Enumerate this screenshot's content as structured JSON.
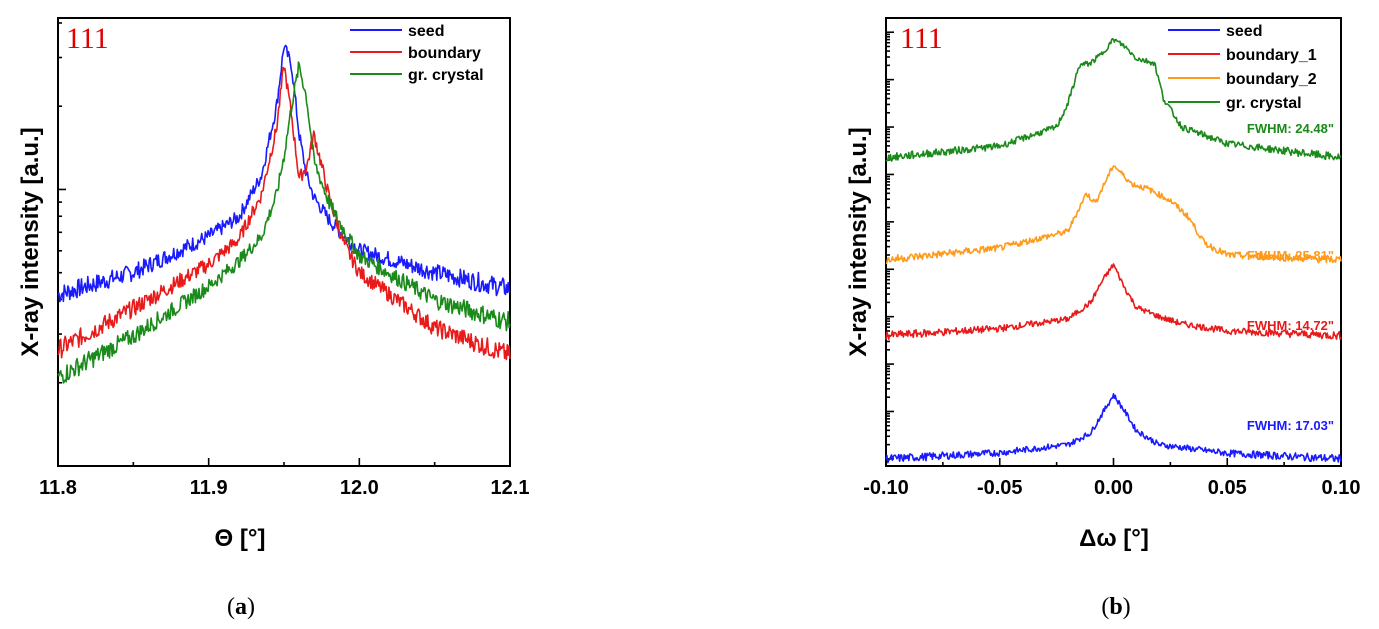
{
  "chart_data": [
    {
      "type": "line",
      "panel_label": "a",
      "annotation": "111",
      "xlabel": "Θ  [°]",
      "ylabel": "X-ray intensity [a.u.]",
      "y_scale": "log",
      "xlim": [
        11.8,
        12.1
      ],
      "xticks": [
        "11.8",
        "11.9",
        "12.0",
        "12.1"
      ],
      "grid": false,
      "legend_position": "top-right",
      "series": [
        {
          "name": "seed",
          "color": "#1a1aff",
          "x": [
            11.8,
            11.85,
            11.9,
            11.92,
            11.935,
            11.945,
            11.95,
            11.955,
            11.96,
            11.965,
            11.97,
            11.98,
            11.99,
            12.0,
            12.05,
            12.1
          ],
          "y": [
            0.62,
            0.7,
            0.83,
            0.9,
            1.05,
            1.3,
            1.52,
            1.45,
            1.2,
            1.05,
            0.97,
            0.89,
            0.83,
            0.78,
            0.7,
            0.64
          ]
        },
        {
          "name": "boundary",
          "color": "#e81a1a",
          "x": [
            11.8,
            11.85,
            11.9,
            11.92,
            11.935,
            11.945,
            11.95,
            11.955,
            11.96,
            11.965,
            11.97,
            11.98,
            11.99,
            12.0,
            12.05,
            12.1
          ],
          "y": [
            0.42,
            0.57,
            0.73,
            0.82,
            0.98,
            1.22,
            1.45,
            1.27,
            1.04,
            1.08,
            1.2,
            0.97,
            0.8,
            0.7,
            0.5,
            0.4
          ]
        },
        {
          "name": "gr. crystal",
          "color": "#1a8a1a",
          "x": [
            11.8,
            11.85,
            11.9,
            11.92,
            11.935,
            11.945,
            11.95,
            11.955,
            11.96,
            11.965,
            11.97,
            11.98,
            11.99,
            12.0,
            12.05,
            12.1
          ],
          "y": [
            0.32,
            0.47,
            0.65,
            0.74,
            0.83,
            0.98,
            1.12,
            1.3,
            1.45,
            1.33,
            1.1,
            0.95,
            0.85,
            0.76,
            0.6,
            0.52
          ]
        }
      ]
    },
    {
      "type": "line",
      "panel_label": "b",
      "annotation": "111",
      "xlabel": "Δω [°]",
      "ylabel": "X-ray intensity [a.u.]",
      "y_scale": "log (curves vertically offset)",
      "xlim": [
        -0.1,
        0.1
      ],
      "xticks": [
        "-0.10",
        "-0.05",
        "0.00",
        "0.05",
        "0.10"
      ],
      "grid": false,
      "legend_position": "top-right",
      "series": [
        {
          "name": "seed",
          "color": "#1a1aff",
          "fwhm": "FWHM: 17.03\"",
          "x": [
            -0.1,
            -0.05,
            -0.02,
            -0.01,
            -0.005,
            0.0,
            0.005,
            0.01,
            0.02,
            0.05,
            0.1
          ],
          "y": [
            0.0,
            0.13,
            0.3,
            0.55,
            0.95,
            1.35,
            1.0,
            0.6,
            0.3,
            0.12,
            0.0
          ]
        },
        {
          "name": "boundary_1",
          "color": "#e81a1a",
          "fwhm": "FWHM: 14.72\"",
          "x": [
            -0.1,
            -0.05,
            -0.02,
            -0.01,
            -0.005,
            0.0,
            0.005,
            0.01,
            0.02,
            0.03,
            0.05,
            0.1
          ],
          "y": [
            2.6,
            2.75,
            2.95,
            3.3,
            3.75,
            4.1,
            3.6,
            3.2,
            3.0,
            2.85,
            2.7,
            2.6
          ]
        },
        {
          "name": "boundary_2",
          "color": "#ff9a1a",
          "fwhm": "FWHM: 25.81\"",
          "x": [
            -0.1,
            -0.05,
            -0.02,
            -0.012,
            -0.008,
            0.0,
            0.008,
            0.015,
            0.025,
            0.033,
            0.04,
            0.05,
            0.1
          ],
          "y": [
            4.2,
            4.45,
            4.8,
            5.6,
            5.4,
            6.2,
            5.8,
            5.7,
            5.45,
            5.1,
            4.55,
            4.3,
            4.2
          ]
        },
        {
          "name": "gr. crystal",
          "color": "#1a8a1a",
          "fwhm": "FWHM: 24.48\"",
          "x": [
            -0.1,
            -0.05,
            -0.025,
            -0.02,
            -0.015,
            -0.01,
            -0.005,
            0.0,
            0.005,
            0.01,
            0.018,
            0.022,
            0.03,
            0.05,
            0.1
          ],
          "y": [
            6.35,
            6.6,
            7.0,
            7.5,
            8.3,
            8.35,
            8.55,
            8.85,
            8.7,
            8.45,
            8.35,
            7.6,
            7.0,
            6.65,
            6.35
          ]
        }
      ]
    }
  ]
}
